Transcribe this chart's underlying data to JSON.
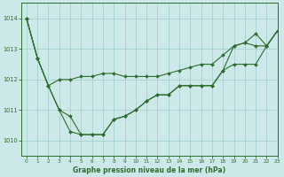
{
  "title": "Graphe pression niveau de la mer (hPa)",
  "background_color": "#cce8e8",
  "grid_color": "#9ecece",
  "line_color": "#2d6e2d",
  "xlim": [
    -0.5,
    23
  ],
  "ylim": [
    1009.5,
    1014.5
  ],
  "yticks": [
    1010,
    1011,
    1012,
    1013,
    1014
  ],
  "xticks": [
    0,
    1,
    2,
    3,
    4,
    5,
    6,
    7,
    8,
    9,
    10,
    11,
    12,
    13,
    14,
    15,
    16,
    17,
    18,
    19,
    20,
    21,
    22,
    23
  ],
  "line1": [
    1014.0,
    1012.7,
    1011.8,
    1012.0,
    1012.0,
    1012.1,
    1012.1,
    1012.2,
    1012.2,
    1012.1,
    1012.1,
    1012.1,
    1012.1,
    1012.2,
    1012.3,
    1012.4,
    1012.5,
    1012.5,
    1012.8,
    1013.1,
    1013.2,
    1013.1,
    1013.1,
    1013.6
  ],
  "line2": [
    1014.0,
    1012.7,
    1011.8,
    1011.0,
    1010.8,
    1010.2,
    1010.2,
    1010.2,
    1010.7,
    1010.8,
    1011.0,
    1011.3,
    1011.5,
    1011.5,
    1011.8,
    1011.8,
    1011.8,
    1011.8,
    1012.3,
    1012.5,
    1012.5,
    1012.5,
    1013.1,
    1013.6
  ],
  "line3": [
    1014.0,
    1012.7,
    1011.8,
    1011.0,
    1010.3,
    1010.2,
    1010.2,
    1010.2,
    1010.7,
    1010.8,
    1011.0,
    1011.3,
    1011.5,
    1011.5,
    1011.8,
    1011.8,
    1011.8,
    1011.8,
    1012.3,
    1013.1,
    1013.2,
    1013.5,
    1013.1,
    1013.6
  ],
  "figsize": [
    3.2,
    2.0
  ],
  "dpi": 100
}
